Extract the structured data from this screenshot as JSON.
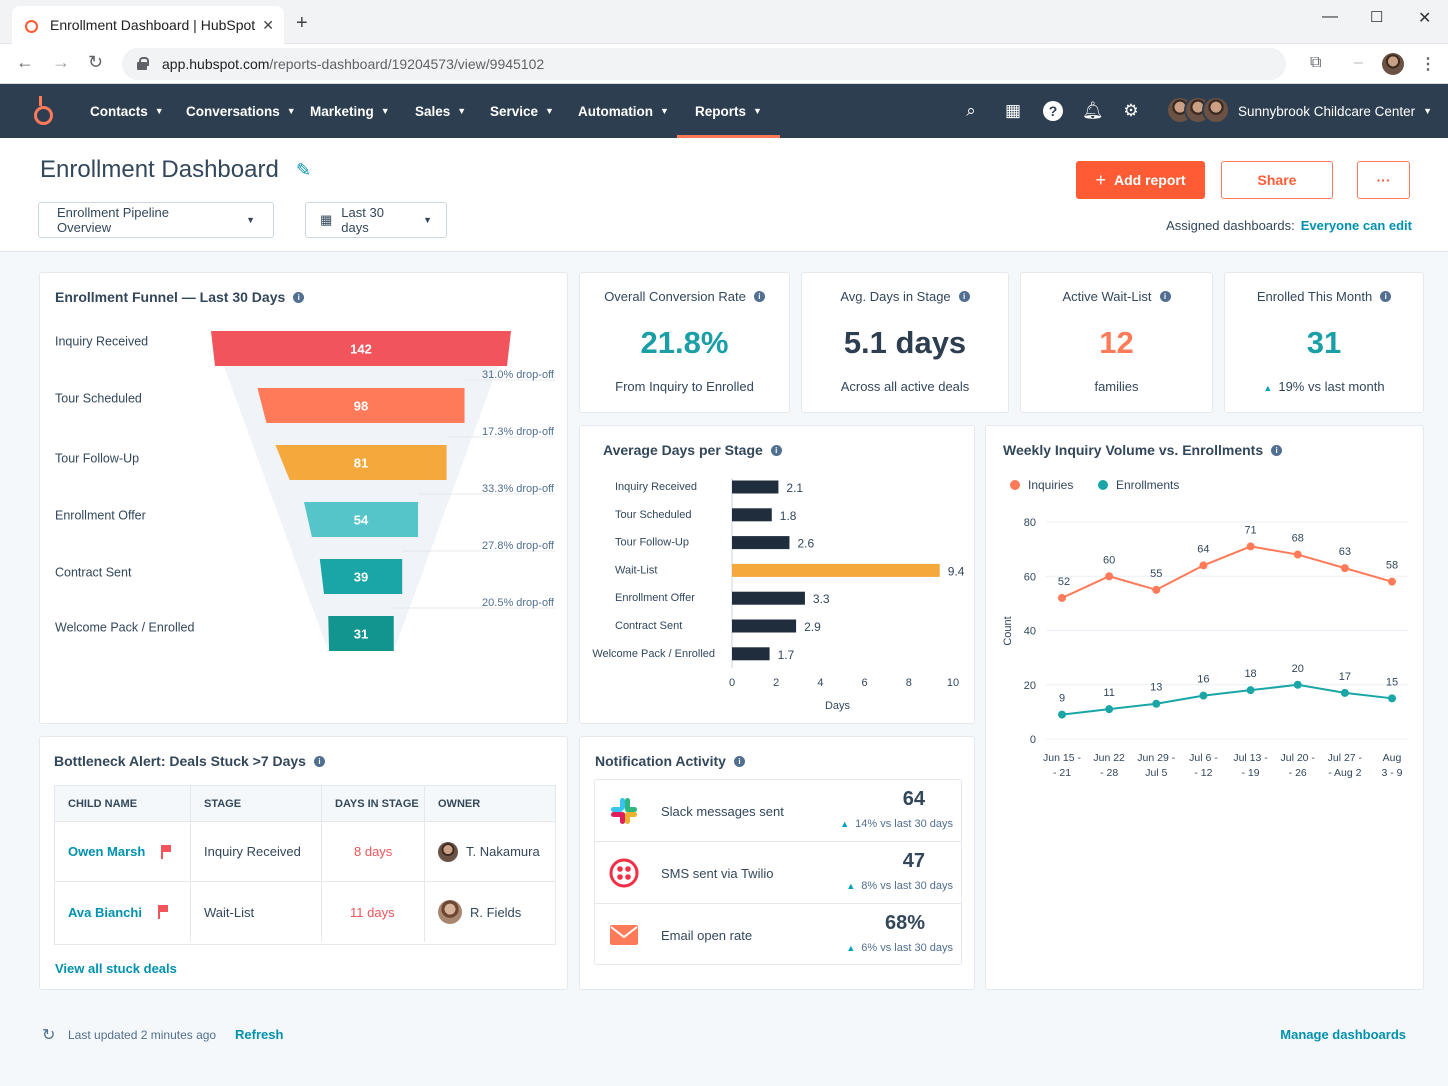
{
  "browser": {
    "tab_title": "Enrollment Dashboard | HubSpot",
    "url_domain": "app.hubspot.com",
    "url_path": "/reports-dashboard/19204573/view/9945102"
  },
  "nav": {
    "items": [
      "Contacts",
      "Conversations",
      "Marketing",
      "Sales",
      "Service",
      "Automation",
      "Reports"
    ],
    "active": "Reports",
    "portal": "Sunnybrook Childcare Center"
  },
  "header": {
    "title": "Enrollment Dashboard",
    "dashboard_select": "Enrollment Pipeline Overview",
    "date_range": "Last 30 days",
    "add_report": "Add report",
    "share": "Share",
    "more": "···",
    "assigned_label": "Assigned dashboards:",
    "assigned_link": "Everyone can edit"
  },
  "funnel": {
    "title": "Enrollment Funnel — Last 30 Days",
    "chart_data": {
      "type": "bar",
      "orientation": "funnel",
      "categories": [
        "Inquiry Received",
        "Tour Scheduled",
        "Tour Follow-Up",
        "Enrollment Offer",
        "Contract Sent",
        "Welcome Pack / Enrolled"
      ],
      "values": [
        142,
        98,
        81,
        54,
        39,
        31
      ],
      "dropoffs": [
        "31.0% drop-off",
        "17.3% drop-off",
        "33.3% drop-off",
        "27.8% drop-off",
        "20.5% drop-off"
      ],
      "colors": [
        "#f2545b",
        "#ff7a59",
        "#f5a83b",
        "#56c5c9",
        "#1aa6a6",
        "#12958f"
      ]
    }
  },
  "kpis": [
    {
      "label": "Overall Conversion Rate",
      "value": "21.8%",
      "sub": "From Inquiry to Enrolled",
      "color": "#1a9fa6"
    },
    {
      "label": "Avg. Days in Stage",
      "value": "5.1 days",
      "sub": "Across all active deals",
      "color": "#2d3e50"
    },
    {
      "label": "Active Wait-List",
      "value": "12",
      "sub": "families",
      "color": "#ff7a59"
    },
    {
      "label": "Enrolled This Month",
      "value": "31",
      "sub": "19% vs last month",
      "color": "#1a9fa6"
    }
  ],
  "avgdays": {
    "title": "Average Days per Stage",
    "chart_data": {
      "type": "bar",
      "orientation": "horizontal",
      "categories": [
        "Inquiry Received",
        "Tour Scheduled",
        "Tour Follow-Up",
        "Wait-List",
        "Enrollment Offer",
        "Contract Sent",
        "Welcome Pack / Enrolled"
      ],
      "values": [
        2.1,
        1.8,
        2.6,
        9.4,
        3.3,
        2.9,
        1.7
      ],
      "highlight": "Wait-List",
      "xlim": [
        0,
        10
      ],
      "xticks": [
        0,
        2,
        4,
        6,
        8,
        10
      ],
      "xlabel": "Days",
      "bar_color": "#1f2d3d",
      "highlight_color": "#f5a83b"
    }
  },
  "weekly": {
    "title": "Weekly Inquiry Volume vs. Enrollments",
    "chart_data": {
      "type": "line",
      "categories": [
        "Jun 15 - 21",
        "Jun 22 - 28",
        "Jun 29 - Jul 5",
        "Jul 6 - 12",
        "Jul 13 - 19",
        "Jul 20 - 26",
        "Jul 27 - Aug 2",
        "Aug 3 - 9"
      ],
      "category_lines": [
        [
          "Jun 15 -",
          "- 21"
        ],
        [
          "Jun 22",
          "- 28"
        ],
        [
          "Jun 29 -",
          "Jul 5"
        ],
        [
          "Jul 6 -",
          "- 12"
        ],
        [
          "Jul 13 -",
          "- 19"
        ],
        [
          "Jul 20 -",
          "- 26"
        ],
        [
          "Jul 27 -",
          "- Aug 2"
        ],
        [
          "Aug",
          "3 - 9"
        ]
      ],
      "series": [
        {
          "name": "Inquiries",
          "values": [
            52,
            60,
            55,
            64,
            71,
            68,
            63,
            58
          ],
          "color": "#ff7a59"
        },
        {
          "name": "Enrollments",
          "values": [
            9,
            11,
            13,
            16,
            18,
            20,
            17,
            15
          ],
          "color": "#1aa6a6"
        }
      ],
      "ylim": [
        0,
        80
      ],
      "yticks": [
        0,
        20,
        40,
        60,
        80
      ],
      "ylabel": "Count",
      "legend": "top-left"
    }
  },
  "bottleneck": {
    "title": "Bottleneck Alert: Deals Stuck >7 Days",
    "columns": [
      "CHILD NAME",
      "STAGE",
      "DAYS IN STAGE",
      "OWNER"
    ],
    "rows": [
      {
        "name": "Owen Marsh",
        "stage": "Inquiry Received",
        "days": "8 days",
        "owner": "T. Nakamura"
      },
      {
        "name": "Ava Bianchi",
        "stage": "Wait-List",
        "days": "11 days",
        "owner": "R. Fields"
      }
    ],
    "link": "View all stuck deals"
  },
  "notifications": {
    "title": "Notification Activity",
    "rows": [
      {
        "icon": "slack-icon",
        "label": "Slack messages sent",
        "value": "64",
        "delta": "14% vs last 30 days"
      },
      {
        "icon": "twilio-icon",
        "label": "SMS sent via Twilio",
        "value": "47",
        "delta": "8% vs last 30 days"
      },
      {
        "icon": "email-icon",
        "label": "Email open rate",
        "value": "68%",
        "delta": "6% vs last 30 days"
      }
    ]
  },
  "footer": {
    "updated": "Last updated 2 minutes ago",
    "refresh": "Refresh",
    "manage": "Manage dashboards"
  }
}
